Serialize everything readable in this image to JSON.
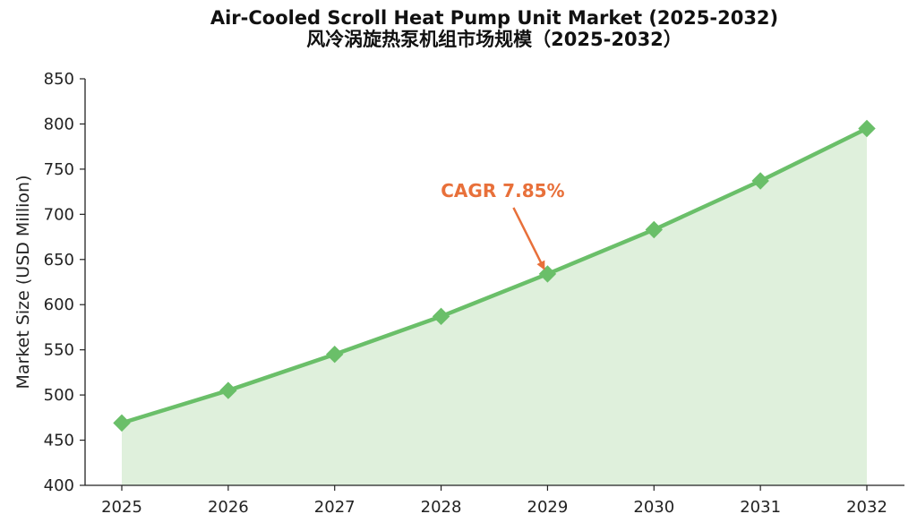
{
  "chart_data": {
    "type": "area",
    "title": "Air-Cooled Scroll Heat Pump Unit Market (2025-2032)",
    "subtitle": "风冷涡旋热泵机组市场规模（2025-2032）",
    "xlabel": "",
    "ylabel": "Market Size (USD Million)",
    "categories": [
      "2025",
      "2026",
      "2027",
      "2028",
      "2029",
      "2030",
      "2031",
      "2032"
    ],
    "values": [
      469,
      505,
      545,
      587,
      634,
      683,
      737,
      795
    ],
    "ylim": [
      400,
      850
    ],
    "yticks": [
      400,
      450,
      500,
      550,
      600,
      650,
      700,
      750,
      800,
      850
    ],
    "grid": false,
    "marker": "diamond",
    "annotation": {
      "text": "CAGR 7.85%",
      "target_category": "2029"
    },
    "colors": {
      "line": "#6abf69",
      "fill": "#dff0dc",
      "annotation": "#e8703a",
      "axis": "#222222"
    }
  }
}
